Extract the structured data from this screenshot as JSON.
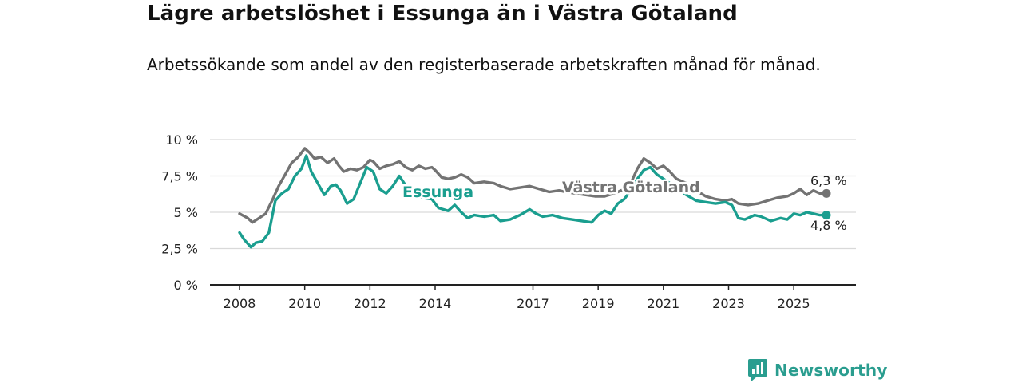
{
  "header": {
    "title": "Lägre arbetslöshet i Essunga än i Västra Götaland",
    "subtitle": "Arbetssökande som andel av den registerbaserade arbetskraften månad för månad."
  },
  "brand": {
    "name": "Newsworthy",
    "icon": "newsworthy-logo-icon"
  },
  "colors": {
    "essunga": "#1a9e8f",
    "vg": "#737373",
    "grid": "#d9d9d9",
    "axis": "#222222"
  },
  "chart_data": {
    "type": "line",
    "title": "Lägre arbetslöshet i Essunga än i Västra Götaland",
    "subtitle": "Arbetssökande som andel av den registerbaserade arbetskraften månad för månad.",
    "xlabel": "",
    "ylabel": "",
    "xlim": [
      2008,
      2026.3
    ],
    "ylim": [
      0,
      10
    ],
    "y_ticks": [
      0,
      2.5,
      5,
      7.5,
      10
    ],
    "y_tick_labels": [
      "0 %",
      "2,5 %",
      "5 %",
      "7,5 %",
      "10 %"
    ],
    "x_ticks": [
      2008,
      2010,
      2012,
      2014,
      2017,
      2019,
      2021,
      2023,
      2025
    ],
    "x_tick_labels": [
      "2008",
      "2010",
      "2012",
      "2014",
      "2017",
      "2019",
      "2021",
      "2023",
      "2025"
    ],
    "grid": true,
    "series": [
      {
        "name": "Västra Götaland",
        "color": "#737373",
        "end_label": "6,3 %",
        "x": [
          2008.0,
          2008.25,
          2008.4,
          2008.6,
          2008.8,
          2009.0,
          2009.2,
          2009.4,
          2009.6,
          2009.8,
          2010.0,
          2010.15,
          2010.3,
          2010.5,
          2010.7,
          2010.9,
          2011.05,
          2011.2,
          2011.4,
          2011.6,
          2011.8,
          2012.0,
          2012.1,
          2012.3,
          2012.5,
          2012.7,
          2012.9,
          2013.1,
          2013.3,
          2013.5,
          2013.7,
          2013.9,
          2014.0,
          2014.2,
          2014.4,
          2014.6,
          2014.8,
          2015.0,
          2015.2,
          2015.5,
          2015.8,
          2016.0,
          2016.3,
          2016.6,
          2016.9,
          2017.2,
          2017.5,
          2017.8,
          2018.0,
          2018.3,
          2018.6,
          2018.9,
          2019.2,
          2019.5,
          2019.8,
          2020.0,
          2020.2,
          2020.4,
          2020.6,
          2020.8,
          2021.0,
          2021.2,
          2021.4,
          2021.7,
          2022.0,
          2022.3,
          2022.6,
          2022.9,
          2023.1,
          2023.3,
          2023.6,
          2023.9,
          2024.2,
          2024.5,
          2024.8,
          2025.0,
          2025.2,
          2025.4,
          2025.6,
          2025.8,
          2026.0
        ],
        "y": [
          4.9,
          4.6,
          4.3,
          4.6,
          4.9,
          5.8,
          6.8,
          7.6,
          8.4,
          8.8,
          9.4,
          9.1,
          8.7,
          8.8,
          8.4,
          8.7,
          8.2,
          7.8,
          8.0,
          7.9,
          8.1,
          8.6,
          8.5,
          8.0,
          8.2,
          8.3,
          8.5,
          8.1,
          7.9,
          8.2,
          8.0,
          8.1,
          7.9,
          7.4,
          7.3,
          7.4,
          7.6,
          7.4,
          7.0,
          7.1,
          7.0,
          6.8,
          6.6,
          6.7,
          6.8,
          6.6,
          6.4,
          6.5,
          6.4,
          6.3,
          6.2,
          6.1,
          6.1,
          6.3,
          6.6,
          7.0,
          8.0,
          8.7,
          8.4,
          8.0,
          8.2,
          7.8,
          7.3,
          7.0,
          6.5,
          6.1,
          5.9,
          5.8,
          5.9,
          5.6,
          5.5,
          5.6,
          5.8,
          6.0,
          6.1,
          6.3,
          6.6,
          6.2,
          6.5,
          6.3,
          6.3
        ]
      },
      {
        "name": "Essunga",
        "color": "#1a9e8f",
        "end_label": "4,8 %",
        "x": [
          2008.0,
          2008.15,
          2008.35,
          2008.5,
          2008.7,
          2008.9,
          2009.1,
          2009.3,
          2009.5,
          2009.7,
          2009.9,
          2010.05,
          2010.2,
          2010.4,
          2010.6,
          2010.8,
          2010.95,
          2011.1,
          2011.3,
          2011.5,
          2011.7,
          2011.9,
          2012.1,
          2012.3,
          2012.5,
          2012.7,
          2012.9,
          2013.05,
          2013.3,
          2013.6,
          2013.9,
          2014.1,
          2014.4,
          2014.6,
          2014.8,
          2015.0,
          2015.2,
          2015.5,
          2015.8,
          2016.0,
          2016.3,
          2016.6,
          2016.9,
          2017.1,
          2017.3,
          2017.6,
          2017.9,
          2018.2,
          2018.5,
          2018.8,
          2019.0,
          2019.2,
          2019.4,
          2019.6,
          2019.8,
          2020.0,
          2020.2,
          2020.4,
          2020.6,
          2020.8,
          2021.0,
          2021.2,
          2021.4,
          2021.7,
          2022.0,
          2022.3,
          2022.6,
          2022.9,
          2023.1,
          2023.3,
          2023.5,
          2023.8,
          2024.0,
          2024.3,
          2024.6,
          2024.8,
          2025.0,
          2025.2,
          2025.4,
          2025.6,
          2025.8,
          2026.0
        ],
        "y": [
          3.6,
          3.1,
          2.6,
          2.9,
          3.0,
          3.6,
          5.8,
          6.3,
          6.6,
          7.5,
          8.0,
          8.9,
          7.8,
          7.0,
          6.2,
          6.8,
          6.9,
          6.5,
          5.6,
          5.9,
          7.0,
          8.1,
          7.8,
          6.6,
          6.3,
          6.8,
          7.5,
          7.0,
          6.2,
          6.0,
          5.9,
          5.3,
          5.1,
          5.5,
          5.0,
          4.6,
          4.8,
          4.7,
          4.8,
          4.4,
          4.5,
          4.8,
          5.2,
          4.9,
          4.7,
          4.8,
          4.6,
          4.5,
          4.4,
          4.3,
          4.8,
          5.1,
          4.9,
          5.6,
          5.9,
          6.5,
          7.3,
          7.9,
          8.1,
          7.6,
          7.3,
          7.0,
          6.6,
          6.2,
          5.8,
          5.7,
          5.6,
          5.7,
          5.5,
          4.6,
          4.5,
          4.8,
          4.7,
          4.4,
          4.6,
          4.5,
          4.9,
          4.8,
          5.0,
          4.9,
          4.8,
          4.8
        ]
      }
    ],
    "annotations": [
      {
        "text": "Essunga",
        "series": "Essunga"
      },
      {
        "text": "Västra Götaland",
        "series": "Västra Götaland"
      }
    ]
  }
}
